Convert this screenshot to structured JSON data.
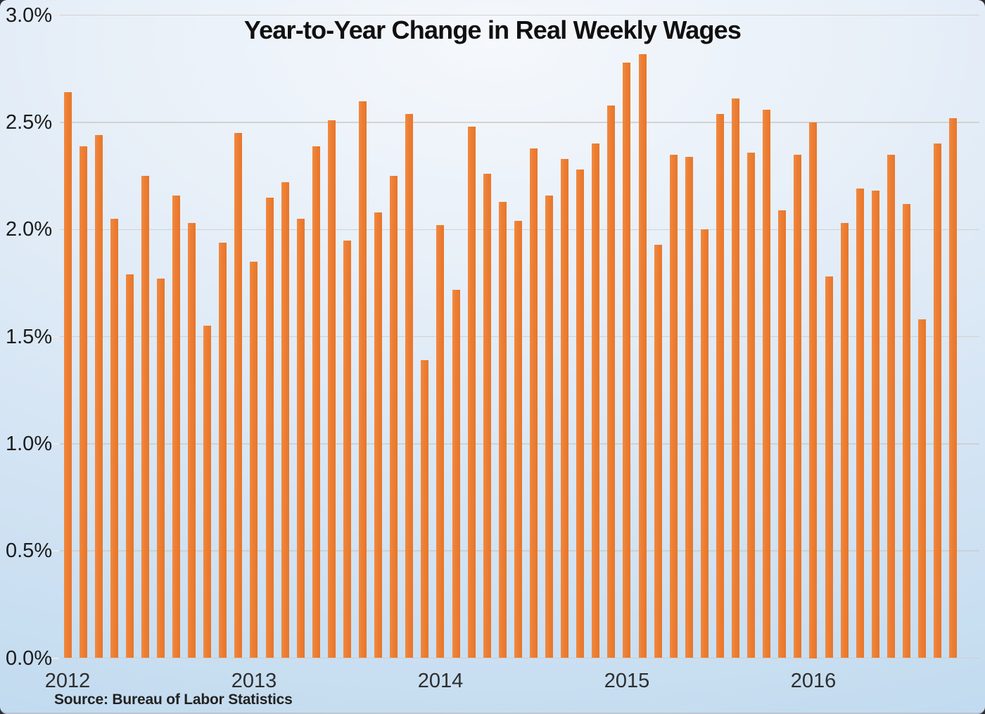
{
  "title": "Year-to-Year Change in Real Weekly Wages",
  "source": "Source: Bureau of Labor Statistics",
  "colors": {
    "bar": "#EC7E33",
    "gridline": "#CFCDC9",
    "background_top": "#F5F8FC",
    "background_bottom": "#B9D3EC",
    "title_text": "#101010",
    "axis_text": "#1B1B1B"
  },
  "y_axis": {
    "labels": [
      "3.0%",
      "2.5%",
      "2.0%",
      "1.5%",
      "1.0%",
      "0.5%",
      "0.0%"
    ]
  },
  "x_axis": {
    "year_labels": [
      "2012",
      "2013",
      "2014",
      "2015",
      "2016"
    ]
  },
  "chart_data": {
    "type": "bar",
    "title": "Year-to-Year Change in Real Weekly Wages",
    "xlabel": "",
    "ylabel": "",
    "unit": "percent",
    "ylim": [
      0,
      3.0
    ],
    "ytick_step": 0.5,
    "grid": true,
    "legend": false,
    "source": "Source: Bureau of Labor Statistics",
    "categories": [
      "2012-01",
      "2012-02",
      "2012-03",
      "2012-04",
      "2012-05",
      "2012-06",
      "2012-07",
      "2012-08",
      "2012-09",
      "2012-10",
      "2012-11",
      "2012-12",
      "2013-01",
      "2013-02",
      "2013-03",
      "2013-04",
      "2013-05",
      "2013-06",
      "2013-07",
      "2013-08",
      "2013-09",
      "2013-10",
      "2013-11",
      "2013-12",
      "2014-01",
      "2014-02",
      "2014-03",
      "2014-04",
      "2014-05",
      "2014-06",
      "2014-07",
      "2014-08",
      "2014-09",
      "2014-10",
      "2014-11",
      "2014-12",
      "2015-01",
      "2015-02",
      "2015-03",
      "2015-04",
      "2015-05",
      "2015-06",
      "2015-07",
      "2015-08",
      "2015-09",
      "2015-10",
      "2015-11",
      "2015-12",
      "2016-01",
      "2016-02",
      "2016-03",
      "2016-04",
      "2016-05",
      "2016-06",
      "2016-07",
      "2016-08",
      "2016-09",
      "2016-10"
    ],
    "values": [
      2.64,
      2.39,
      2.44,
      2.05,
      1.79,
      2.25,
      1.77,
      2.16,
      2.03,
      1.55,
      1.94,
      2.45,
      1.85,
      2.15,
      2.22,
      2.05,
      2.39,
      2.51,
      1.95,
      2.6,
      2.08,
      2.25,
      2.54,
      1.39,
      2.02,
      1.72,
      2.48,
      2.26,
      2.13,
      2.04,
      2.38,
      2.16,
      2.33,
      2.28,
      2.4,
      2.58,
      2.78,
      2.82,
      1.93,
      2.35,
      2.34,
      2.0,
      2.54,
      2.61,
      2.36,
      2.56,
      2.09,
      2.35,
      2.5,
      1.78,
      2.03,
      2.19,
      2.18,
      2.35,
      2.12,
      1.58,
      2.4,
      2.52
    ]
  }
}
